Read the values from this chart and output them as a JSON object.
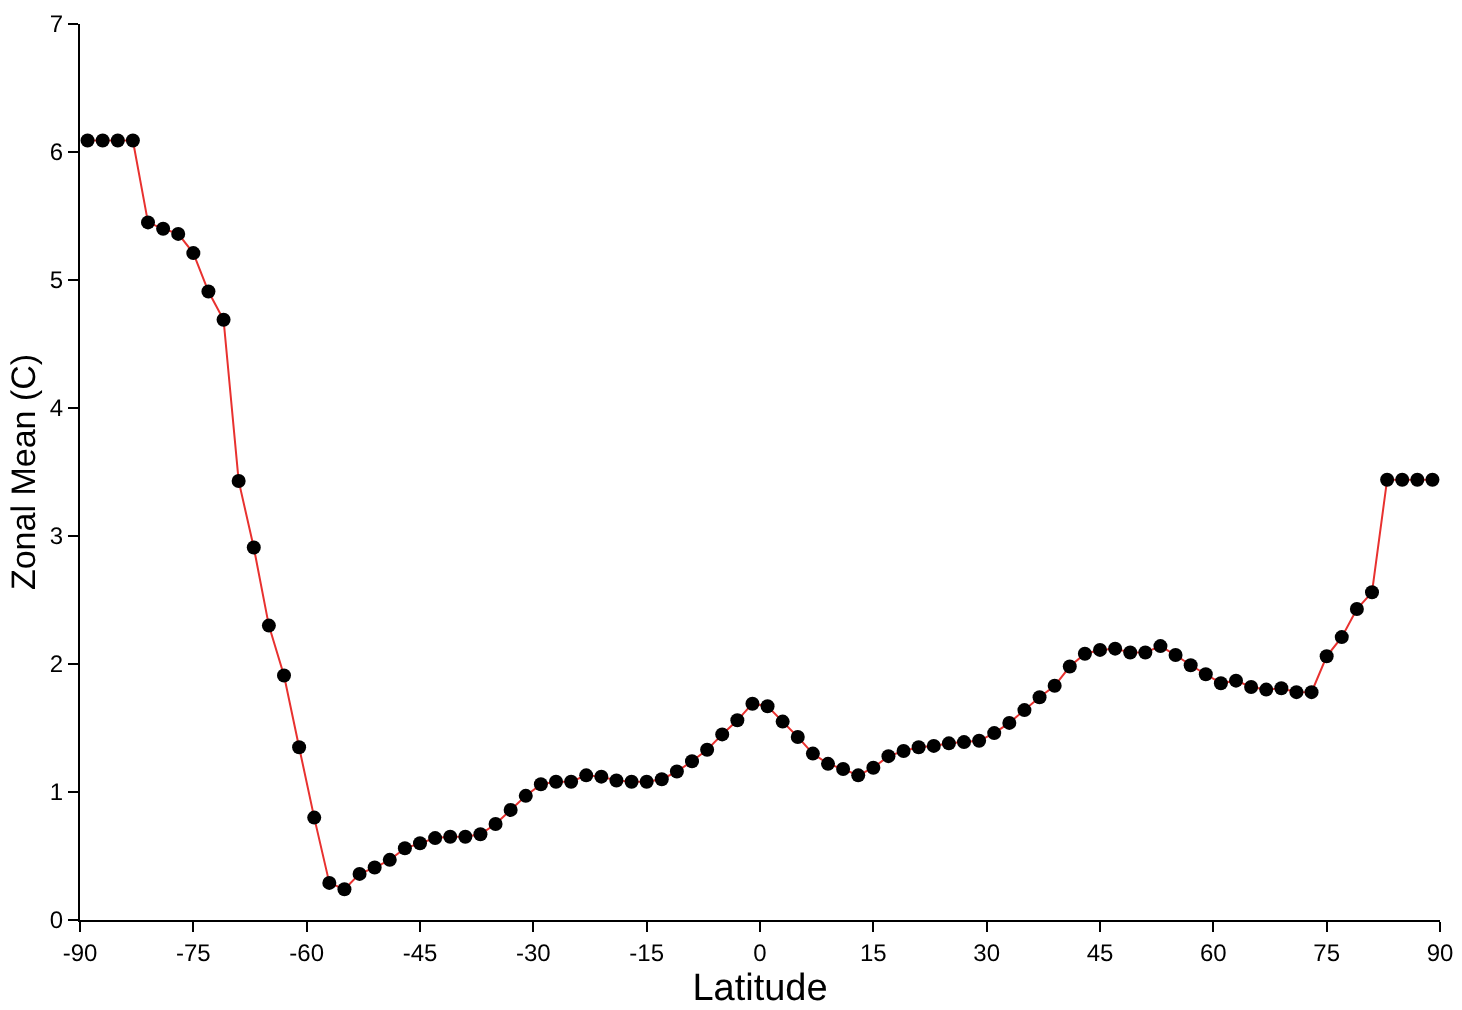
{
  "chart_data": {
    "type": "line",
    "xlabel": "Latitude",
    "ylabel": "Zonal Mean (C)",
    "x": [
      -89,
      -87,
      -85,
      -83,
      -81,
      -79,
      -77,
      -75,
      -73,
      -71,
      -69,
      -67,
      -65,
      -63,
      -61,
      -59,
      -57,
      -55,
      -53,
      -51,
      -49,
      -47,
      -45,
      -43,
      -41,
      -39,
      -37,
      -35,
      -33,
      -31,
      -29,
      -27,
      -25,
      -23,
      -21,
      -19,
      -17,
      -15,
      -13,
      -11,
      -9,
      -7,
      -5,
      -3,
      -1,
      1,
      3,
      5,
      7,
      9,
      11,
      13,
      15,
      17,
      19,
      21,
      23,
      25,
      27,
      29,
      31,
      33,
      35,
      37,
      39,
      41,
      43,
      45,
      47,
      49,
      51,
      53,
      55,
      57,
      59,
      61,
      63,
      65,
      67,
      69,
      71,
      73,
      75,
      77,
      79,
      81,
      83,
      85,
      87,
      89
    ],
    "series": [
      {
        "color": "#e8312f",
        "colors": [
          "#000000",
          "#000000",
          "#000000",
          "#000000",
          "#000000",
          "#000000",
          "#000000",
          "#000000",
          "#000000",
          "#000000",
          "#000000",
          "#000000",
          "#000000",
          "#000000",
          "#000000",
          "#000000",
          "#000000",
          "#000000",
          "#000000",
          "#000000",
          "#000000",
          "#000000",
          "#000000",
          "#000000",
          "#000000",
          "#000000",
          "#000000",
          "#000000",
          "#000000",
          "#000000",
          "#000000",
          "#000000",
          "#000000",
          "#000000",
          "#000000",
          "#000000",
          "#000000",
          "#000000",
          "#000000",
          "#000000",
          "#000000",
          "#000000",
          "#000000",
          "#000000",
          "#000000",
          "#000000",
          "#000000",
          "#000000",
          "#000000",
          "#000000",
          "#000000",
          "#000000",
          "#000000",
          "#000000",
          "#000000",
          "#000000",
          "#000000",
          "#000000",
          "#000000",
          "#000000",
          "#000000",
          "#000000",
          "#000000",
          "#000000",
          "#000000",
          "#000000",
          "#000000",
          "#000000",
          "#000000",
          "#000000",
          "#000000",
          "#000000",
          "#000000",
          "#000000",
          "#000000",
          "#000000",
          "#000000",
          "#000000",
          "#000000",
          "#000000",
          "#000000",
          "#000000",
          "#000000",
          "#000000",
          "#000000",
          "#000000",
          "#000000",
          "#000000",
          "#000000",
          "#000000"
        ],
        "values": [
          6.09,
          6.09,
          6.09,
          6.09,
          5.45,
          5.4,
          5.36,
          5.21,
          4.91,
          4.69,
          3.43,
          2.91,
          2.3,
          1.91,
          1.35,
          0.8,
          0.29,
          0.24,
          0.36,
          0.41,
          0.47,
          0.56,
          0.6,
          0.64,
          0.65,
          0.65,
          0.67,
          0.75,
          0.86,
          0.97,
          1.06,
          1.08,
          1.08,
          1.13,
          1.12,
          1.09,
          1.08,
          1.08,
          1.1,
          1.16,
          1.24,
          1.33,
          1.45,
          1.56,
          1.69,
          1.67,
          1.55,
          1.43,
          1.3,
          1.22,
          1.18,
          1.13,
          1.19,
          1.28,
          1.32,
          1.35,
          1.36,
          1.38,
          1.39,
          1.4,
          1.46,
          1.54,
          1.64,
          1.74,
          1.83,
          1.98,
          2.08,
          2.11,
          2.12,
          2.09,
          2.09,
          2.14,
          2.07,
          1.99,
          1.92,
          1.85,
          1.87,
          1.82,
          1.8,
          1.81,
          1.78,
          1.78,
          2.06,
          2.21,
          2.43,
          2.56,
          3.44,
          3.44,
          3.44,
          3.44
        ]
      }
    ],
    "marker": "circle",
    "line_style": "solid",
    "xlim": [
      -90,
      90
    ],
    "xticks": [
      -90,
      -75,
      -60,
      -45,
      -30,
      -15,
      0,
      15,
      30,
      45,
      60,
      75,
      90
    ],
    "ylim": [
      0,
      7
    ],
    "yticks": [
      0,
      1,
      2,
      3,
      4,
      5,
      6,
      7
    ]
  }
}
